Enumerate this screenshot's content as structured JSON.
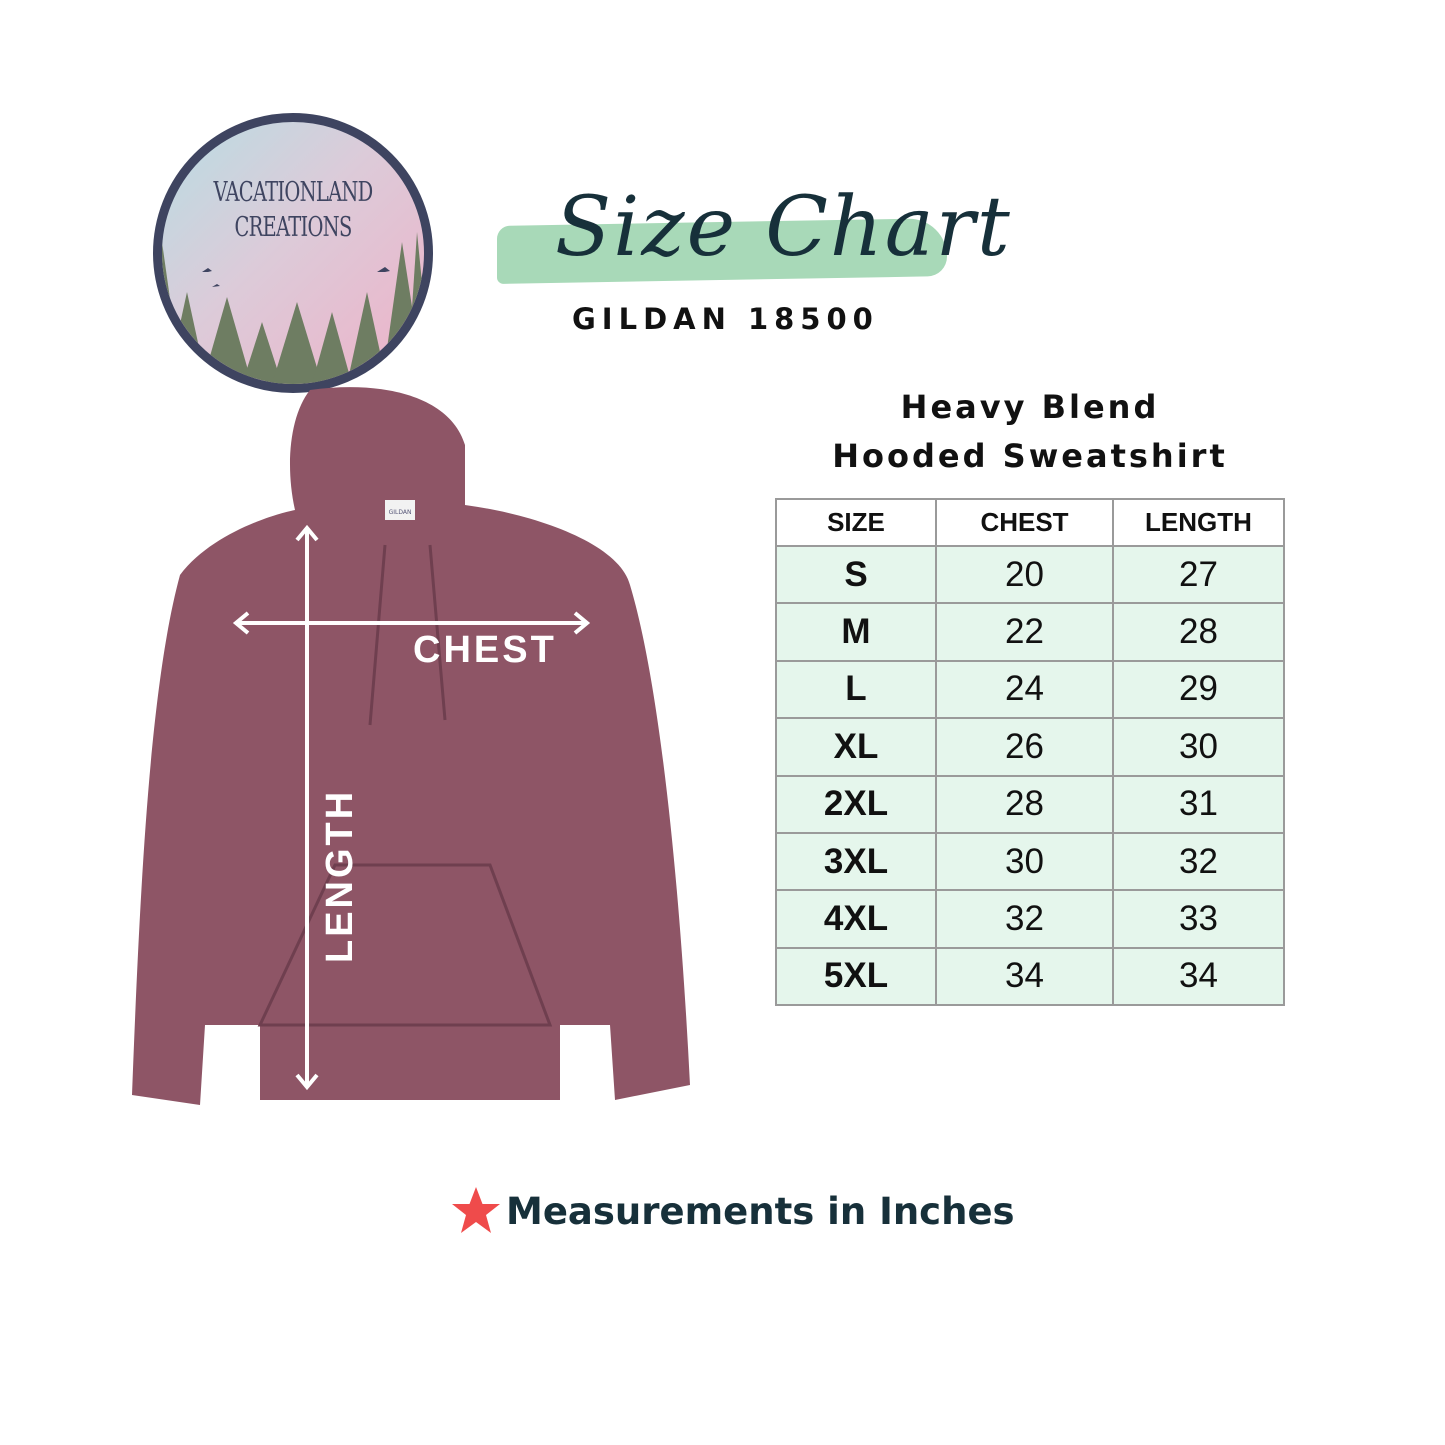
{
  "logo": {
    "line1": "VACATIONLAND",
    "line2": "CREATIONS"
  },
  "header": {
    "title": "Size Chart",
    "model": "GILDAN 18500",
    "brush_color": "#a8d9b8"
  },
  "product": {
    "line1": "Heavy Blend",
    "line2": "Hooded Sweatshirt",
    "color": "#8e5566"
  },
  "diagram": {
    "chest_label": "CHEST",
    "length_label": "LENGTH",
    "tag_text": "GILDAN"
  },
  "table": {
    "headers": [
      "SIZE",
      "CHEST",
      "LENGTH"
    ],
    "rows": [
      [
        "S",
        "20",
        "27"
      ],
      [
        "M",
        "22",
        "28"
      ],
      [
        "L",
        "24",
        "29"
      ],
      [
        "XL",
        "26",
        "30"
      ],
      [
        "2XL",
        "28",
        "31"
      ],
      [
        "3XL",
        "30",
        "32"
      ],
      [
        "4XL",
        "32",
        "33"
      ],
      [
        "5XL",
        "34",
        "34"
      ]
    ],
    "row_color": "#e5f6ec"
  },
  "footer": {
    "note": "Measurements in Inches",
    "icon": "star-icon",
    "icon_color": "#ef4b4b"
  }
}
